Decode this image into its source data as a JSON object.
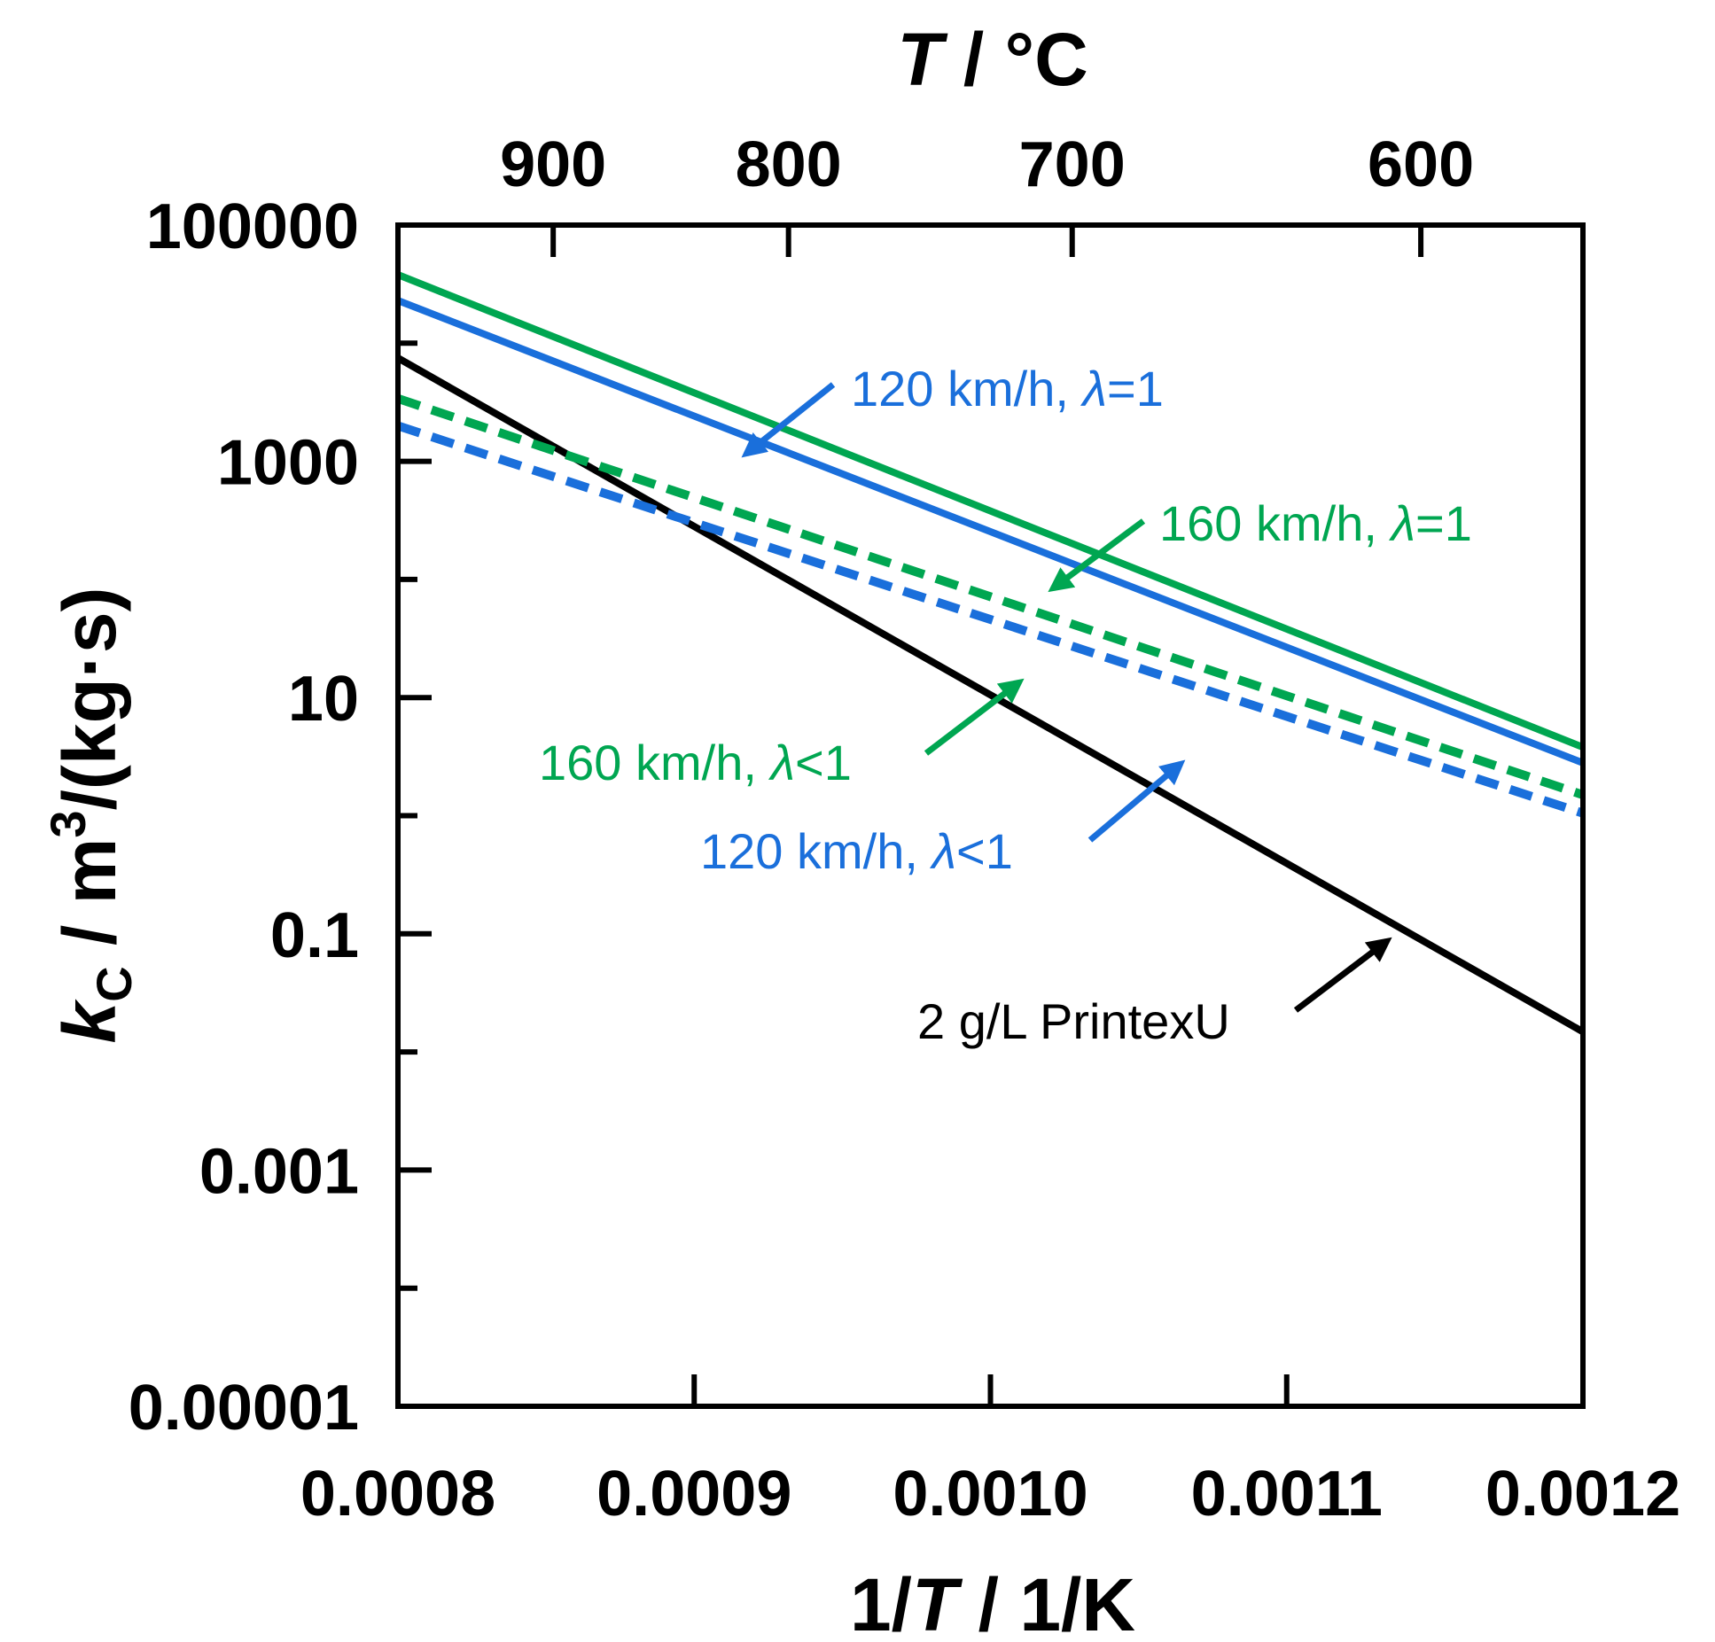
{
  "chart_data": {
    "type": "line",
    "x_axis": {
      "label_parts": [
        "1/",
        "T",
        " / 1/K"
      ],
      "range": [
        0.0008,
        0.0012
      ],
      "ticks": [
        0.0008,
        0.0009,
        0.001,
        0.0011,
        0.0012
      ],
      "tick_labels": [
        "0.0008",
        "0.0009",
        "0.0010",
        "0.0011",
        "0.0012"
      ]
    },
    "top_axis": {
      "label_parts": [
        "T",
        " / °C"
      ],
      "ticks": [
        900,
        800,
        700,
        600
      ],
      "tick_labels": [
        "900",
        "800",
        "700",
        "600"
      ]
    },
    "y_axis": {
      "label_parts": [
        "k",
        "C",
        " / m",
        "3",
        "/(kg·s)"
      ],
      "scale": "log",
      "range": [
        1e-05,
        100000
      ],
      "ticks": [
        1e-05,
        0.001,
        0.1,
        10,
        1000,
        100000
      ],
      "tick_labels": [
        "0.00001",
        "0.001",
        "0.1",
        "10",
        "1000",
        "100000"
      ],
      "minor_ticks": [
        0.0001,
        0.01,
        1,
        100,
        10000
      ]
    },
    "grid": false,
    "legend": "none",
    "series": [
      {
        "style": "solid",
        "color": "#00a651",
        "x": [
          0.0008,
          0.0012
        ],
        "y": [
          38000,
          3.8
        ]
      },
      {
        "style": "solid",
        "color": "#1a6fdb",
        "x": [
          0.0008,
          0.0012
        ],
        "y": [
          23000,
          2.8
        ]
      },
      {
        "style": "solid",
        "color": "#000000",
        "x": [
          0.0008,
          0.0012
        ],
        "y": [
          7500,
          0.0148
        ]
      },
      {
        "style": "dashed",
        "color": "#00a651",
        "x": [
          0.0008,
          0.0012
        ],
        "y": [
          3400,
          1.5
        ]
      },
      {
        "style": "dashed",
        "color": "#1a6fdb",
        "x": [
          0.0008,
          0.0012
        ],
        "y": [
          2000,
          1.05
        ]
      }
    ],
    "annotations": [
      {
        "parts": [
          "120 km/h, ",
          "λ",
          "=1"
        ],
        "color": "#1a6fdb"
      },
      {
        "parts": [
          "160 km/h, ",
          "λ",
          "=1"
        ],
        "color": "#00a651"
      },
      {
        "parts": [
          "160 km/h, ",
          "λ",
          "<1"
        ],
        "color": "#00a651"
      },
      {
        "parts": [
          "120 km/h, ",
          "λ",
          "<1"
        ],
        "color": "#1a6fdb"
      },
      {
        "parts": [
          "2 g/L PrintexU"
        ],
        "color": "#000000"
      }
    ]
  }
}
